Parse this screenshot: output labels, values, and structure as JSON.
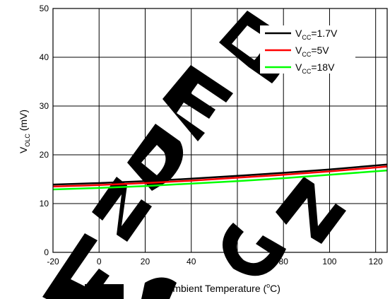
{
  "chart_data": {
    "type": "line",
    "title": "",
    "xlabel": {
      "main": "Ambient Temperature (",
      "unit_sup": "o",
      "unit": "C",
      "close": ")"
    },
    "ylabel": {
      "main": "V",
      "sub": "OLC",
      "unit": " (mV)"
    },
    "xlim": [
      -20,
      125
    ],
    "ylim": [
      0,
      50
    ],
    "xticks": [
      -20,
      0,
      20,
      40,
      60,
      80,
      100,
      120
    ],
    "yticks": [
      0,
      10,
      20,
      30,
      40,
      50
    ],
    "grid": true,
    "legend_position": "top-right",
    "x": [
      -20,
      0,
      20,
      40,
      60,
      80,
      100,
      125
    ],
    "series": [
      {
        "name": "VCC=1.7V",
        "label_main": "V",
        "label_sub": "CC",
        "label_rest": "=1.7V",
        "color": "#000000",
        "values": [
          13.9,
          14.2,
          14.6,
          15.1,
          15.7,
          16.3,
          17.0,
          18.0
        ]
      },
      {
        "name": "VCC=5V",
        "label_main": "V",
        "label_sub": "CC",
        "label_rest": "=5V",
        "color": "#ff0000",
        "values": [
          13.5,
          13.8,
          14.2,
          14.7,
          15.3,
          15.9,
          16.6,
          17.6
        ]
      },
      {
        "name": "VCC=18V",
        "label_main": "V",
        "label_sub": "CC",
        "label_rest": "=18V",
        "color": "#00ff00",
        "values": [
          12.9,
          13.2,
          13.6,
          14.1,
          14.6,
          15.2,
          15.9,
          16.8
        ]
      }
    ]
  },
  "watermark": {
    "text": "NOT RECOMMENDED FOR NEW DESIGN",
    "color": "#000000"
  }
}
